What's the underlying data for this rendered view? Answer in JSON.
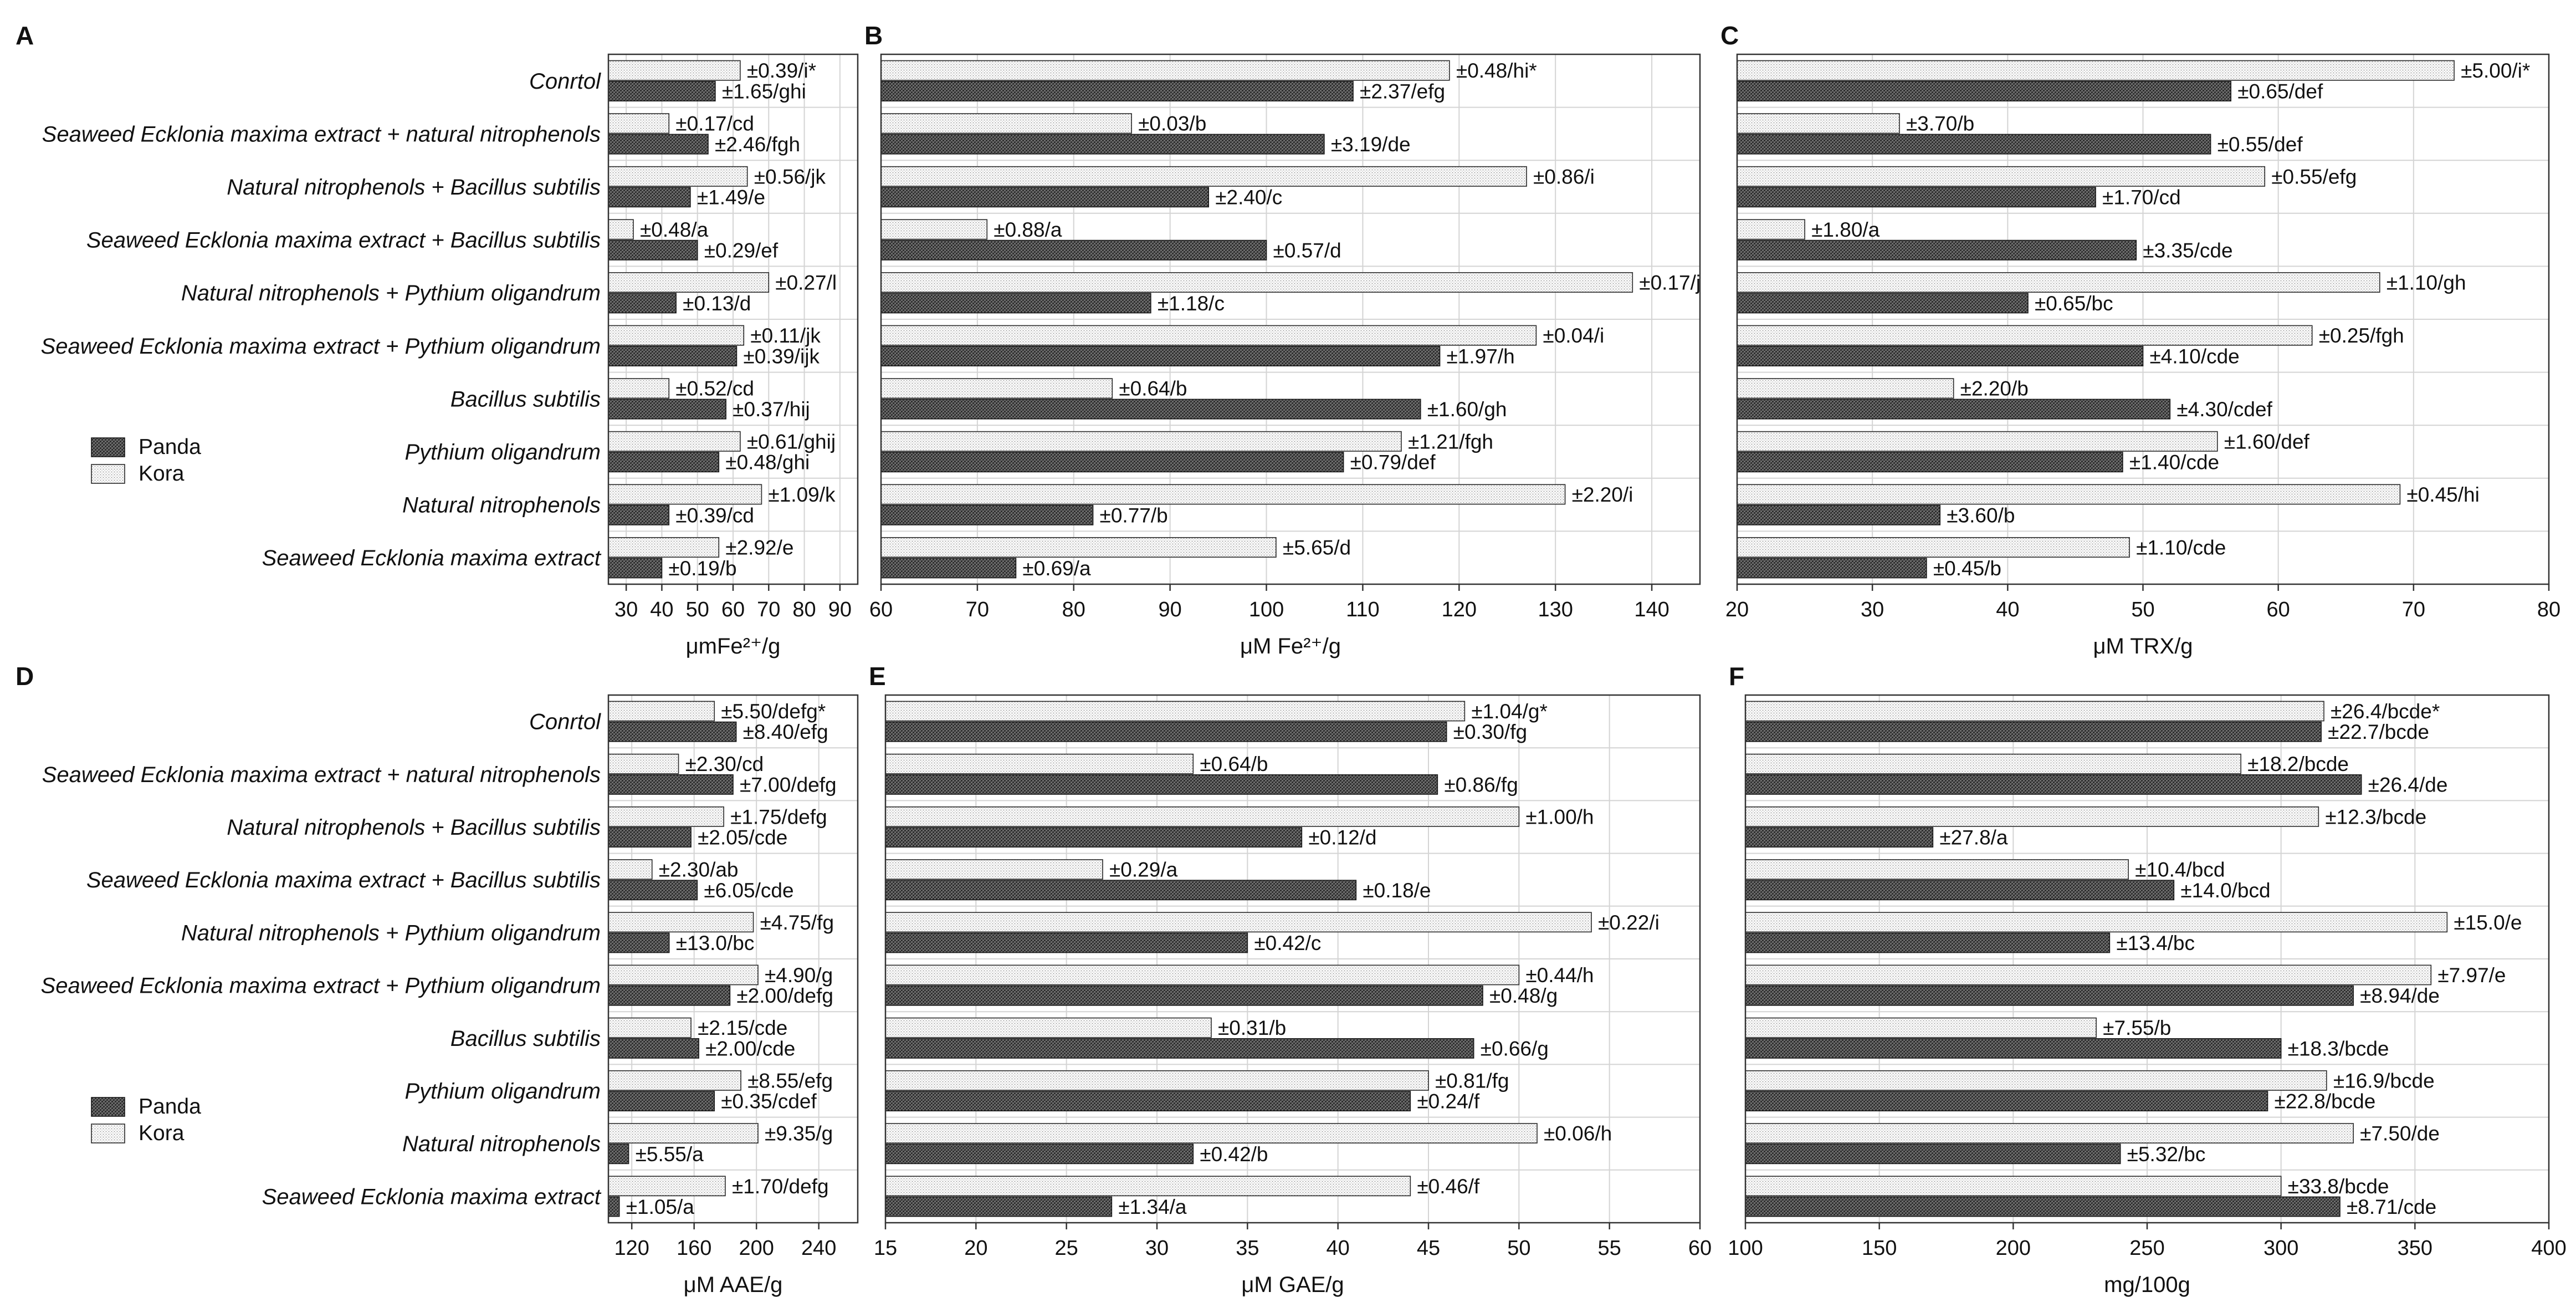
{
  "figure_title": "",
  "colors": {
    "panda": "#555555",
    "kora": "#f2f2f2",
    "frame": "#333333",
    "grid": "#d4d4d4"
  },
  "legend": {
    "panda": "Panda",
    "kora": "Kora"
  },
  "chart_data": [
    {
      "type": "bar",
      "panel": "A",
      "orientation": "horizontal",
      "title": "",
      "xlabel": "μmFe²⁺/g",
      "ylabel": "",
      "xlim": [
        25,
        95
      ],
      "xticks": [
        30,
        40,
        50,
        60,
        70,
        80,
        90
      ],
      "categories": [
        "Conrtol",
        "Seaweed Ecklonia maxima extract + natural nitrophenols",
        "Natural nitrophenols + Bacillus subtilis",
        "Seaweed Ecklonia maxima extract + Bacillus subtilis",
        "Natural nitrophenols + Pythium oligandrum",
        "Seaweed Ecklonia maxima extract + Pythium oligandrum",
        "Bacillus subtilis",
        "Pythium oligandrum",
        "Natural nitrophenols",
        "Seaweed Ecklonia maxima extract"
      ],
      "series": [
        {
          "name": "Kora",
          "values": [
            62,
            42,
            64,
            32,
            70,
            63,
            42,
            62,
            68,
            56
          ],
          "labels": [
            "±0.39/i*",
            "±0.17/cd",
            "±0.56/jk",
            "±0.48/a",
            "±0.27/l",
            "±0.11/jk",
            "±0.52/cd",
            "±0.61/ghij",
            "±1.09/k",
            "±2.92/e"
          ]
        },
        {
          "name": "Panda",
          "values": [
            55,
            53,
            48,
            50,
            44,
            61,
            58,
            56,
            42,
            40
          ],
          "labels": [
            "±1.65/ghi",
            "±2.46/fgh",
            "±1.49/e",
            "±0.29/ef",
            "±0.13/d",
            "±0.39/ijk",
            "±0.37/hij",
            "±0.48/ghi",
            "±0.39/cd",
            "±0.19/b"
          ]
        }
      ],
      "grid": true,
      "legend_position": "lower-left"
    },
    {
      "type": "bar",
      "panel": "B",
      "orientation": "horizontal",
      "title": "",
      "xlabel": "μM Fe²⁺/g",
      "ylabel": "",
      "xlim": [
        60,
        145
      ],
      "xticks": [
        60,
        70,
        80,
        90,
        100,
        110,
        120,
        130,
        140
      ],
      "categories": [
        "Conrtol",
        "Seaweed Ecklonia maxima extract + natural nitrophenols",
        "Natural nitrophenols + Bacillus subtilis",
        "Seaweed Ecklonia maxima extract + Bacillus subtilis",
        "Natural nitrophenols + Pythium oligandrum",
        "Seaweed Ecklonia maxima extract + Pythium oligandrum",
        "Bacillus subtilis",
        "Pythium oligandrum",
        "Natural nitrophenols",
        "Seaweed Ecklonia maxima extract"
      ],
      "series": [
        {
          "name": "Kora",
          "values": [
            119,
            86,
            127,
            71,
            138,
            128,
            84,
            114,
            131,
            101
          ],
          "labels": [
            "±0.48/hi*",
            "±0.03/b",
            "±0.86/i",
            "±0.88/a",
            "±0.17/j",
            "±0.04/i",
            "±0.64/b",
            "±1.21/fgh",
            "±2.20/i",
            "±5.65/d"
          ]
        },
        {
          "name": "Panda",
          "values": [
            109,
            106,
            94,
            100,
            88,
            118,
            116,
            108,
            82,
            74
          ],
          "labels": [
            "±2.37/efg",
            "±3.19/de",
            "±2.40/c",
            "±0.57/d",
            "±1.18/c",
            "±1.97/h",
            "±1.60/gh",
            "±0.79/def",
            "±0.77/b",
            "±0.69/a"
          ]
        }
      ],
      "grid": true,
      "legend_position": "none"
    },
    {
      "type": "bar",
      "panel": "C",
      "orientation": "horizontal",
      "title": "",
      "xlabel": "μM TRX/g",
      "ylabel": "",
      "xlim": [
        20,
        80
      ],
      "xticks": [
        20,
        30,
        40,
        50,
        60,
        70,
        80
      ],
      "categories": [
        "Conrtol",
        "Seaweed Ecklonia maxima extract + natural nitrophenols",
        "Natural nitrophenols + Bacillus subtilis",
        "Seaweed Ecklonia maxima extract + Bacillus subtilis",
        "Natural nitrophenols + Pythium oligandrum",
        "Seaweed Ecklonia maxima extract + Pythium oligandrum",
        "Bacillus subtilis",
        "Pythium oligandrum",
        "Natural nitrophenols",
        "Seaweed Ecklonia maxima extract"
      ],
      "series": [
        {
          "name": "Kora",
          "values": [
            73,
            32,
            59,
            25,
            67.5,
            62.5,
            36,
            55.5,
            69,
            49
          ],
          "labels": [
            "±5.00/i*",
            "±3.70/b",
            "±0.55/efg",
            "±1.80/a",
            "±1.10/gh",
            "±0.25/fgh",
            "±2.20/b",
            "±1.60/def",
            "±0.45/hi",
            "±1.10/cde"
          ]
        },
        {
          "name": "Panda",
          "values": [
            56.5,
            55,
            46.5,
            49.5,
            41.5,
            50,
            52,
            48.5,
            35,
            34
          ],
          "labels": [
            "±0.65/def",
            "±0.55/def",
            "±1.70/cd",
            "±3.35/cde",
            "±0.65/bc",
            "±4.10/cde",
            "±4.30/cdef",
            "±1.40/cde",
            "±3.60/b",
            "±0.45/b"
          ]
        }
      ],
      "grid": true,
      "legend_position": "none"
    },
    {
      "type": "bar",
      "panel": "D",
      "orientation": "horizontal",
      "title": "",
      "xlabel": "μM AAE/g",
      "ylabel": "",
      "xlim": [
        105,
        265
      ],
      "xticks": [
        120,
        160,
        200,
        240
      ],
      "categories": [
        "Conrtol",
        "Seaweed Ecklonia maxima extract + natural nitrophenols",
        "Natural nitrophenols + Bacillus subtilis",
        "Seaweed Ecklonia maxima extract + Bacillus subtilis",
        "Natural nitrophenols + Pythium oligandrum",
        "Seaweed Ecklonia maxima extract + Pythium oligandrum",
        "Bacillus subtilis",
        "Pythium oligandrum",
        "Natural nitrophenols",
        "Seaweed Ecklonia maxima extract"
      ],
      "series": [
        {
          "name": "Kora",
          "values": [
            173,
            150,
            179,
            133,
            198,
            201,
            158,
            190,
            201,
            180
          ],
          "labels": [
            "±5.50/defg*",
            "±2.30/cd",
            "±1.75/defg",
            "±2.30/ab",
            "±4.75/fg",
            "±4.90/g",
            "±2.15/cde",
            "±8.55/efg",
            "±9.35/g",
            "±1.70/defg"
          ]
        },
        {
          "name": "Panda",
          "values": [
            187,
            185,
            158,
            162,
            144,
            183,
            163,
            173,
            118,
            112
          ],
          "labels": [
            "±8.40/efg",
            "±7.00/defg",
            "±2.05/cde",
            "±6.05/cde",
            "±13.0/bc",
            "±2.00/defg",
            "±2.00/cde",
            "±0.35/cdef",
            "±5.55/a",
            "±1.05/a"
          ]
        }
      ],
      "grid": true,
      "legend_position": "lower-left"
    },
    {
      "type": "bar",
      "panel": "E",
      "orientation": "horizontal",
      "title": "",
      "xlabel": "μM GAE/g",
      "ylabel": "",
      "xlim": [
        15,
        60
      ],
      "xticks": [
        15,
        20,
        25,
        30,
        35,
        40,
        45,
        50,
        55,
        60
      ],
      "categories": [
        "Conrtol",
        "Seaweed Ecklonia maxima extract + natural nitrophenols",
        "Natural nitrophenols + Bacillus subtilis",
        "Seaweed Ecklonia maxima extract + Bacillus subtilis",
        "Natural nitrophenols + Pythium oligandrum",
        "Seaweed Ecklonia maxima extract + Pythium oligandrum",
        "Bacillus subtilis",
        "Pythium oligandrum",
        "Natural nitrophenols",
        "Seaweed Ecklonia maxima extract"
      ],
      "series": [
        {
          "name": "Kora",
          "values": [
            47,
            32,
            50,
            27,
            54,
            50,
            33,
            45,
            51,
            44
          ],
          "labels": [
            "±1.04/g*",
            "±0.64/b",
            "±1.00/h",
            "±0.29/a",
            "±0.22/i",
            "±0.44/h",
            "±0.31/b",
            "±0.81/fg",
            "±0.06/h",
            "±0.46/f"
          ]
        },
        {
          "name": "Panda",
          "values": [
            46,
            45.5,
            38,
            41,
            35,
            48,
            47.5,
            44,
            32,
            27.5
          ],
          "labels": [
            "±0.30/fg",
            "±0.86/fg",
            "±0.12/d",
            "±0.18/e",
            "±0.42/c",
            "±0.48/g",
            "±0.66/g",
            "±0.24/f",
            "±0.42/b",
            "±1.34/a"
          ]
        }
      ],
      "grid": true,
      "legend_position": "none"
    },
    {
      "type": "bar",
      "panel": "F",
      "orientation": "horizontal",
      "title": "",
      "xlabel": "mg/100g",
      "ylabel": "",
      "xlim": [
        100,
        400
      ],
      "xticks": [
        100,
        150,
        200,
        250,
        300,
        350,
        400
      ],
      "categories": [
        "Conrtol",
        "Seaweed Ecklonia maxima extract + natural nitrophenols",
        "Natural nitrophenols + Bacillus subtilis",
        "Seaweed Ecklonia maxima extract + Bacillus subtilis",
        "Natural nitrophenols + Pythium oligandrum",
        "Seaweed Ecklonia maxima extract + Pythium oligandrum",
        "Bacillus subtilis",
        "Pythium oligandrum",
        "Natural nitrophenols",
        "Seaweed Ecklonia maxima extract"
      ],
      "series": [
        {
          "name": "Kora",
          "values": [
            316,
            285,
            314,
            243,
            362,
            356,
            231,
            317,
            327,
            300
          ],
          "labels": [
            "±26.4/bcde*",
            "±18.2/bcde",
            "±12.3/bcde",
            "±10.4/bcd",
            "±15.0/e",
            "±7.97/e",
            "±7.55/b",
            "±16.9/bcde",
            "±7.50/de",
            "±33.8/bcde"
          ]
        },
        {
          "name": "Panda",
          "values": [
            315,
            330,
            170,
            260,
            236,
            327,
            300,
            295,
            240,
            322
          ],
          "labels": [
            "±22.7/bcde",
            "±26.4/de",
            "±27.8/a",
            "±14.0/bcd",
            "±13.4/bc",
            "±8.94/de",
            "±18.3/bcde",
            "±22.8/bcde",
            "±5.32/bc",
            "±8.71/cde"
          ]
        }
      ],
      "grid": true,
      "legend_position": "none"
    }
  ]
}
